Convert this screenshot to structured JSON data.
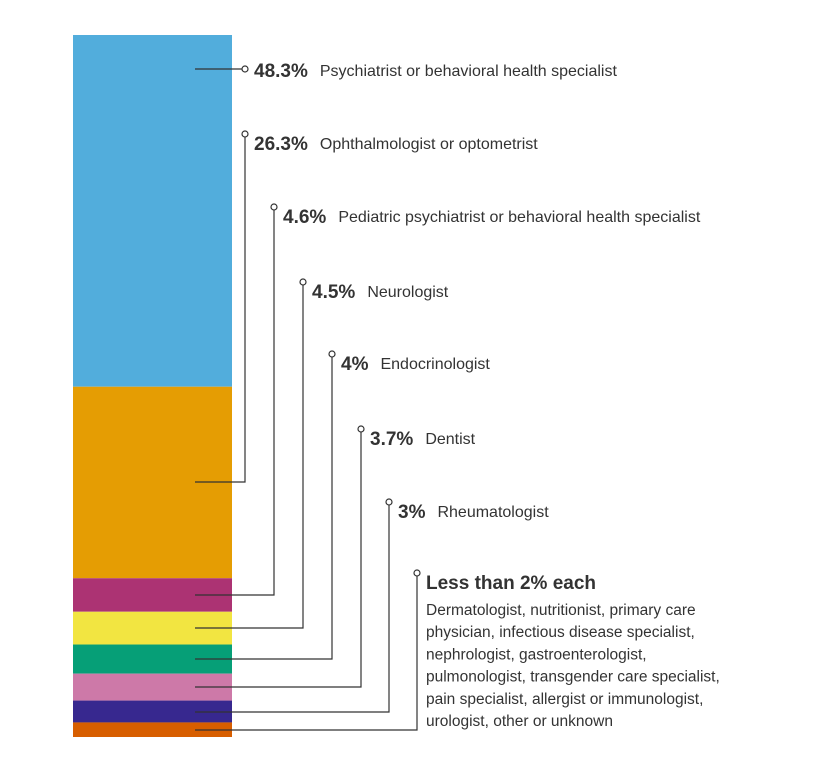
{
  "chart_data": {
    "type": "bar",
    "orientation": "stacked-vertical",
    "segments": [
      {
        "value": 48.3,
        "value_label": "48.3%",
        "label": "Psychiatrist or behavioral health specialist",
        "color": "#52ADDC"
      },
      {
        "value": 26.3,
        "value_label": "26.3%",
        "label": "Ophthalmologist or optometrist",
        "color": "#E59D03"
      },
      {
        "value": 4.6,
        "value_label": "4.6%",
        "label": "Pediatric psychiatrist or behavioral health specialist",
        "color": "#AC3373"
      },
      {
        "value": 4.5,
        "value_label": "4.5%",
        "label": "Neurologist",
        "color": "#F2E541"
      },
      {
        "value": 4.0,
        "value_label": "4%",
        "label": "Endocrinologist",
        "color": "#069F77"
      },
      {
        "value": 3.7,
        "value_label": "3.7%",
        "label": "Dentist",
        "color": "#CD79A8"
      },
      {
        "value": 3.0,
        "value_label": "3%",
        "label": "Rheumatologist",
        "color": "#37288F"
      },
      {
        "value": 2.0,
        "value_label": "Less than 2% each",
        "label_lines": [
          "Dermatologist, nutritionist, primary care",
          "physician, infectious disease specialist,",
          "nephrologist, gastroenterologist,",
          "pulmonologist, transgender care specialist,",
          "pain specialist, allergist or immunologist,",
          "urologist, other or unknown"
        ],
        "color": "#D75E00"
      }
    ]
  }
}
